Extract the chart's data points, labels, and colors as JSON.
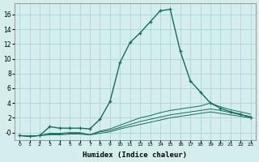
{
  "xlabel": "Humidex (Indice chaleur)",
  "background_color": "#d4eeee",
  "grid_color": "#aed4d4",
  "line_color": "#1a6b5a",
  "xlim": [
    -0.5,
    23.5
  ],
  "ylim": [
    -1.0,
    17.5
  ],
  "yticks": [
    0,
    2,
    4,
    6,
    8,
    10,
    12,
    14,
    16
  ],
  "ytick_labels": [
    "-0",
    "2",
    "4",
    "6",
    "8",
    "10",
    "12",
    "14",
    "16"
  ],
  "xticks": [
    0,
    1,
    2,
    3,
    4,
    5,
    6,
    7,
    8,
    9,
    10,
    11,
    12,
    13,
    14,
    15,
    16,
    17,
    18,
    19,
    20,
    21,
    22,
    23
  ],
  "series_main": {
    "x": [
      0,
      1,
      2,
      3,
      4,
      5,
      6,
      7,
      8,
      9,
      10,
      11,
      12,
      13,
      14,
      15,
      16,
      17,
      18,
      19,
      20,
      21,
      22,
      23
    ],
    "y": [
      -0.4,
      -0.5,
      -0.4,
      0.8,
      0.6,
      0.6,
      0.6,
      0.5,
      1.8,
      4.2,
      9.5,
      12.2,
      13.5,
      15.0,
      16.5,
      16.7,
      11.0,
      7.0,
      5.5,
      4.0,
      3.3,
      2.8,
      2.5,
      2.0
    ],
    "marker": "+"
  },
  "series_flat": [
    {
      "x": [
        0,
        1,
        2,
        3,
        4,
        5,
        6,
        7,
        8,
        9,
        10,
        11,
        12,
        13,
        14,
        15,
        16,
        17,
        18,
        19,
        20,
        21,
        22,
        23
      ],
      "y": [
        -0.4,
        -0.5,
        -0.4,
        -0.3,
        -0.3,
        -0.2,
        -0.2,
        -0.3,
        -0.1,
        0.1,
        0.5,
        0.8,
        1.1,
        1.4,
        1.7,
        2.0,
        2.2,
        2.4,
        2.6,
        2.8,
        2.6,
        2.4,
        2.2,
        2.0
      ]
    },
    {
      "x": [
        0,
        1,
        2,
        3,
        4,
        5,
        6,
        7,
        8,
        9,
        10,
        11,
        12,
        13,
        14,
        15,
        16,
        17,
        18,
        19,
        20,
        21,
        22,
        23
      ],
      "y": [
        -0.4,
        -0.5,
        -0.4,
        -0.2,
        -0.2,
        -0.1,
        -0.1,
        -0.3,
        0.1,
        0.3,
        0.7,
        1.1,
        1.5,
        1.8,
        2.1,
        2.4,
        2.6,
        2.8,
        3.0,
        3.2,
        3.0,
        2.7,
        2.4,
        2.2
      ]
    },
    {
      "x": [
        0,
        1,
        2,
        3,
        4,
        5,
        6,
        7,
        8,
        9,
        10,
        11,
        12,
        13,
        14,
        15,
        16,
        17,
        18,
        19,
        20,
        21,
        22,
        23
      ],
      "y": [
        -0.4,
        -0.5,
        -0.4,
        -0.1,
        -0.1,
        0.0,
        0.0,
        -0.3,
        0.2,
        0.5,
        1.0,
        1.5,
        2.0,
        2.3,
        2.7,
        3.0,
        3.2,
        3.4,
        3.6,
        4.0,
        3.5,
        3.1,
        2.8,
        2.5
      ]
    }
  ]
}
